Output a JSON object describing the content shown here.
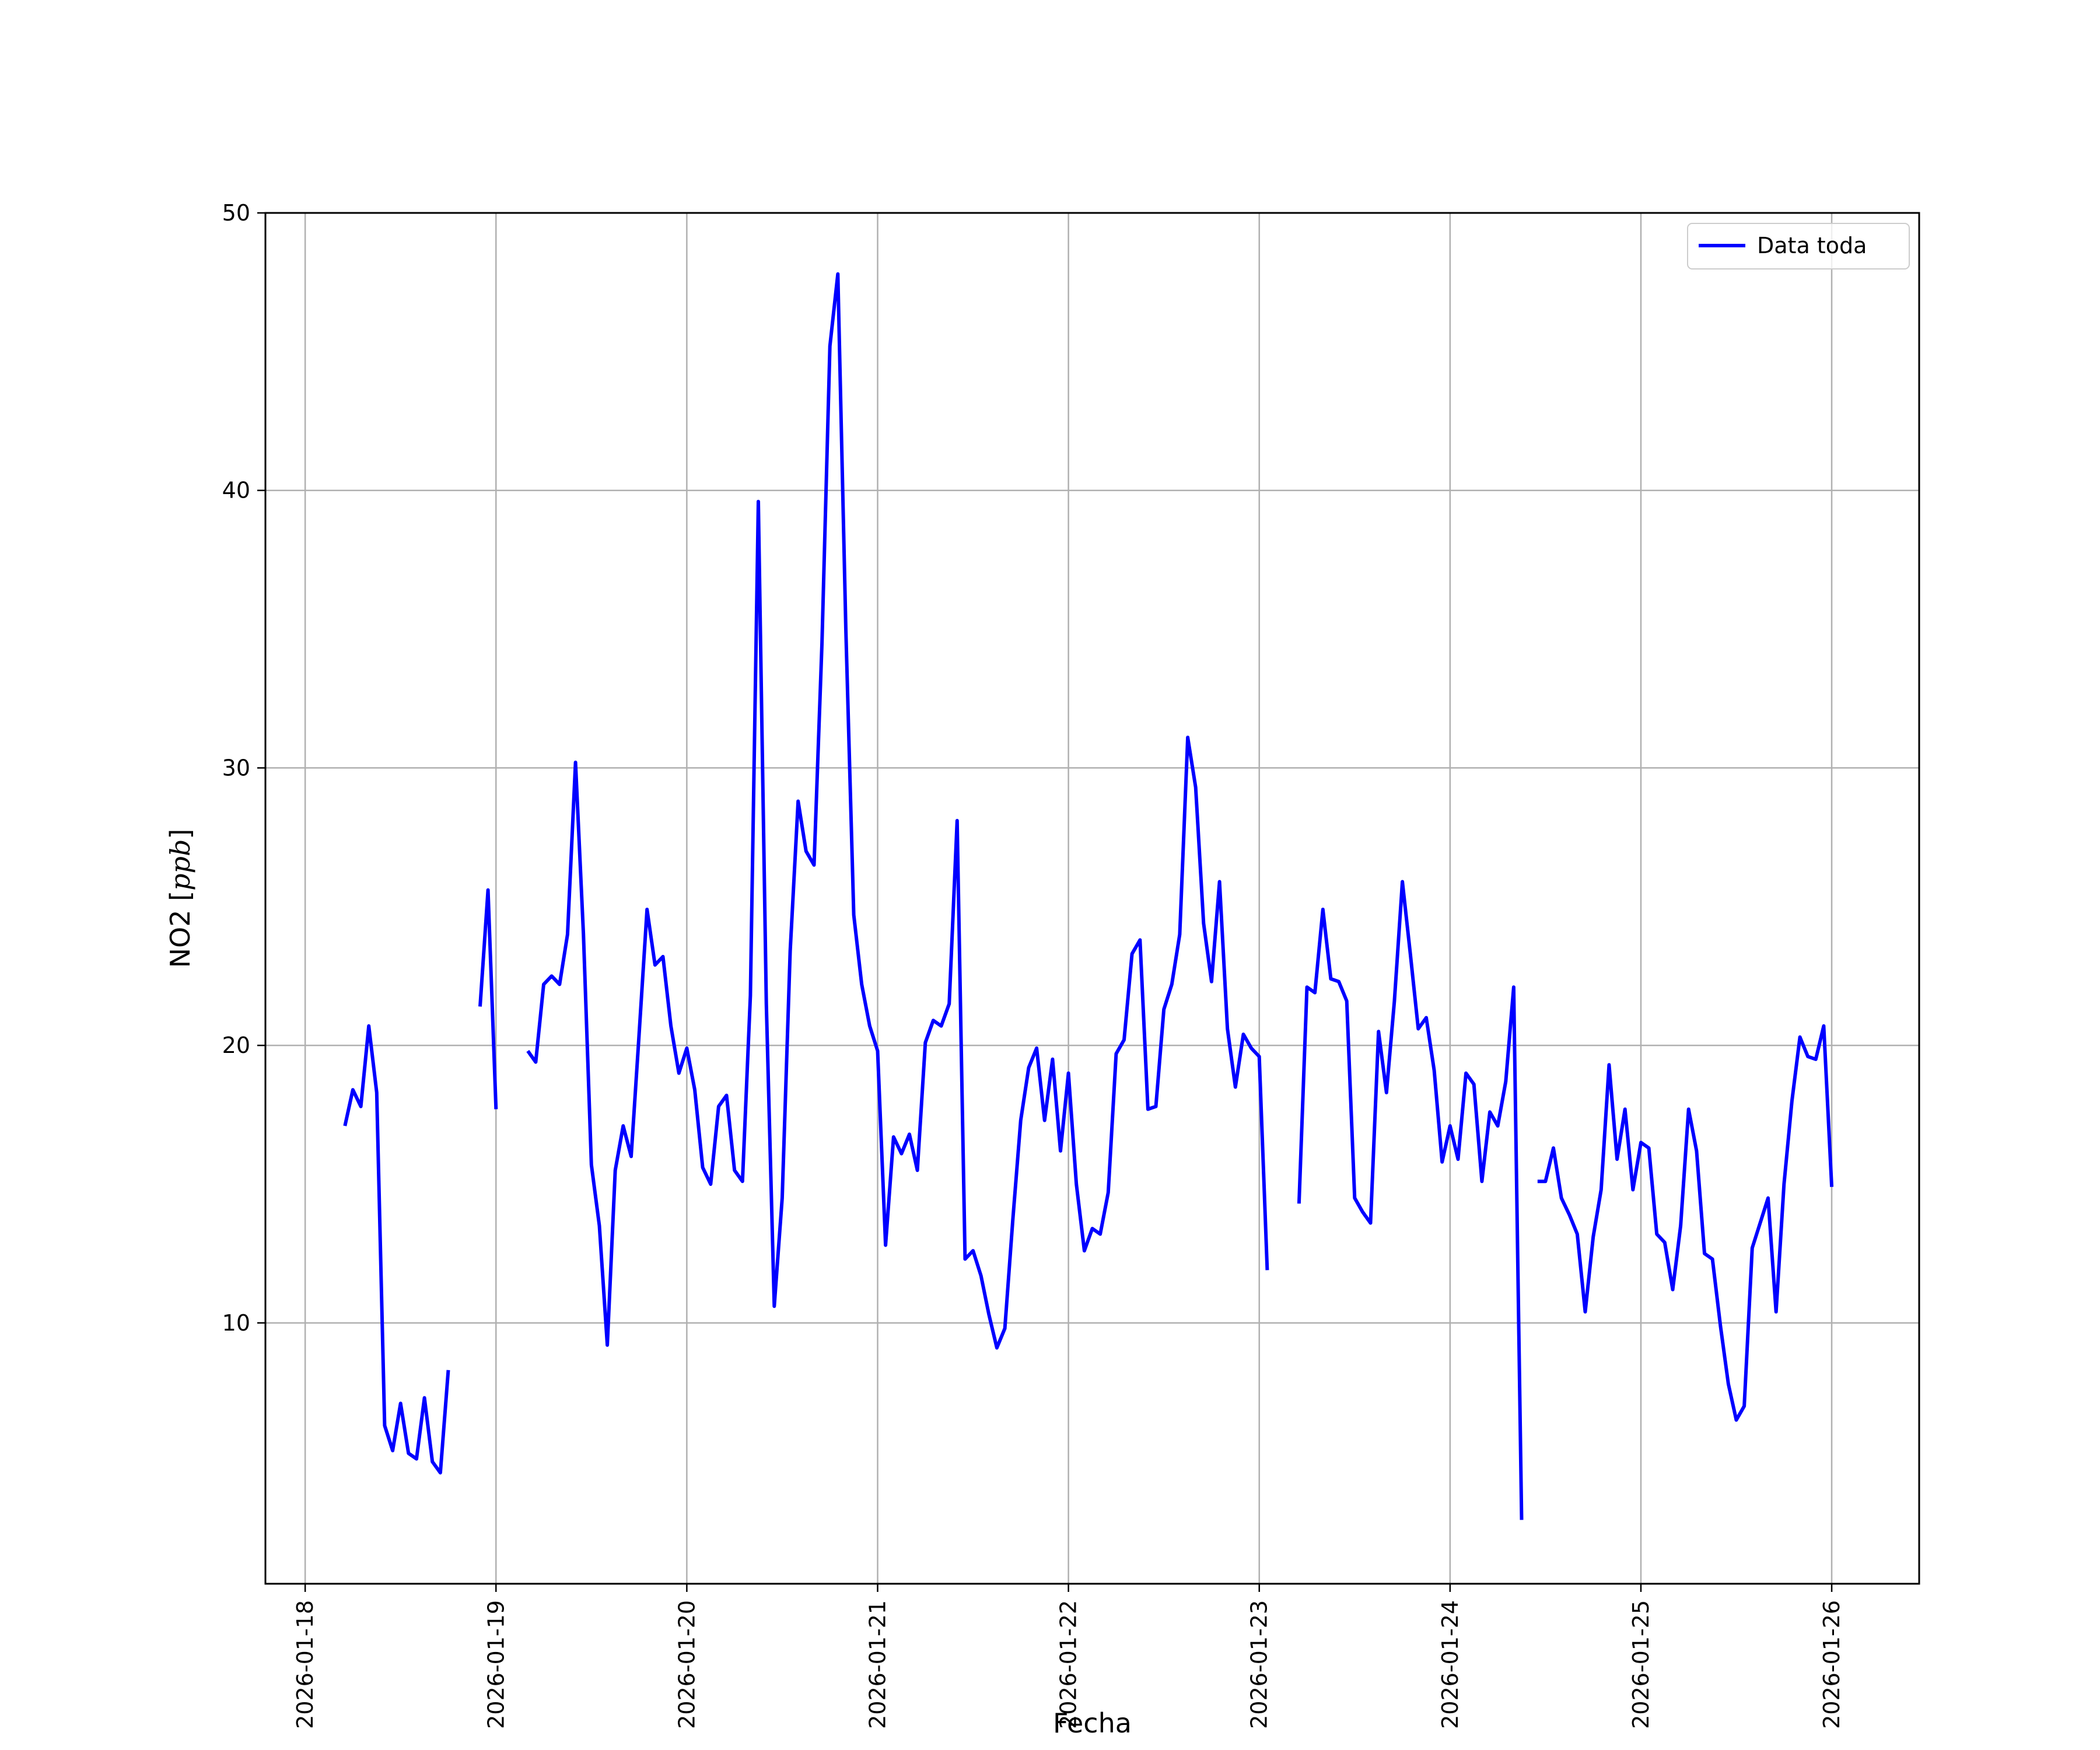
{
  "chart_data": {
    "type": "line",
    "xlabel": "Fecha",
    "ylabel": "NO2 [ppb]",
    "ylabel_parts": {
      "text": "NO2 [",
      "unit": "ppb",
      "close": "]"
    },
    "x_ticks": [
      "2026-01-18",
      "2026-01-19",
      "2026-01-20",
      "2026-01-21",
      "2026-01-22",
      "2026-01-23",
      "2026-01-24",
      "2026-01-25",
      "2026-01-26"
    ],
    "y_ticks": [
      10,
      20,
      30,
      40,
      50
    ],
    "xlim": [
      "2026-01-17 19:00",
      "2026-01-26 11:00"
    ],
    "ylim": [
      0.6,
      50
    ],
    "grid": true,
    "legend": {
      "position": "top-right",
      "entries": [
        "Data toda"
      ]
    },
    "series": [
      {
        "name": "Data toda",
        "color": "#0000ff",
        "points": [
          [
            "2026-01-18 05:00",
            17.1
          ],
          [
            "2026-01-18 06:00",
            18.4
          ],
          [
            "2026-01-18 07:00",
            17.8
          ],
          [
            "2026-01-18 08:00",
            20.7
          ],
          [
            "2026-01-18 09:00",
            18.3
          ],
          [
            "2026-01-18 10:00",
            6.3
          ],
          [
            "2026-01-18 11:00",
            5.4
          ],
          [
            "2026-01-18 12:00",
            7.1
          ],
          [
            "2026-01-18 13:00",
            5.3
          ],
          [
            "2026-01-18 14:00",
            5.1
          ],
          [
            "2026-01-18 15:00",
            7.3
          ],
          [
            "2026-01-18 16:00",
            5.0
          ],
          [
            "2026-01-18 17:00",
            4.6
          ],
          [
            "2026-01-18 18:00",
            8.3
          ],
          [
            "2026-01-18 22:00",
            null
          ],
          [
            "2026-01-18 22:00",
            21.4
          ],
          [
            "2026-01-18 23:00",
            25.6
          ],
          [
            "2026-01-19 00:00",
            17.7
          ],
          [
            "2026-01-19 04:00",
            null
          ],
          [
            "2026-01-19 04:00",
            19.8
          ],
          [
            "2026-01-19 05:00",
            19.4
          ],
          [
            "2026-01-19 06:00",
            22.2
          ],
          [
            "2026-01-19 07:00",
            22.5
          ],
          [
            "2026-01-19 08:00",
            22.2
          ],
          [
            "2026-01-19 09:00",
            24.0
          ],
          [
            "2026-01-19 10:00",
            30.2
          ],
          [
            "2026-01-19 11:00",
            24.0
          ],
          [
            "2026-01-19 12:00",
            15.7
          ],
          [
            "2026-01-19 13:00",
            13.5
          ],
          [
            "2026-01-19 14:00",
            9.2
          ],
          [
            "2026-01-19 15:00",
            15.5
          ],
          [
            "2026-01-19 16:00",
            17.1
          ],
          [
            "2026-01-19 17:00",
            16.0
          ],
          [
            "2026-01-19 18:00",
            20.4
          ],
          [
            "2026-01-19 19:00",
            24.9
          ],
          [
            "2026-01-19 20:00",
            22.9
          ],
          [
            "2026-01-19 21:00",
            23.2
          ],
          [
            "2026-01-19 22:00",
            20.7
          ],
          [
            "2026-01-19 23:00",
            19.0
          ],
          [
            "2026-01-20 00:00",
            19.9
          ],
          [
            "2026-01-20 01:00",
            18.4
          ],
          [
            "2026-01-20 02:00",
            15.6
          ],
          [
            "2026-01-20 03:00",
            15.0
          ],
          [
            "2026-01-20 04:00",
            17.8
          ],
          [
            "2026-01-20 05:00",
            18.2
          ],
          [
            "2026-01-20 06:00",
            15.5
          ],
          [
            "2026-01-20 07:00",
            15.1
          ],
          [
            "2026-01-20 08:00",
            21.8
          ],
          [
            "2026-01-20 09:00",
            39.6
          ],
          [
            "2026-01-20 10:00",
            21.5
          ],
          [
            "2026-01-20 11:00",
            10.6
          ],
          [
            "2026-01-20 12:00",
            14.5
          ],
          [
            "2026-01-20 13:00",
            23.4
          ],
          [
            "2026-01-20 14:00",
            28.8
          ],
          [
            "2026-01-20 15:00",
            27.0
          ],
          [
            "2026-01-20 16:00",
            26.5
          ],
          [
            "2026-01-20 17:00",
            34.5
          ],
          [
            "2026-01-20 18:00",
            45.2
          ],
          [
            "2026-01-20 19:00",
            47.8
          ],
          [
            "2026-01-20 20:00",
            35.0
          ],
          [
            "2026-01-20 21:00",
            24.7
          ],
          [
            "2026-01-20 22:00",
            22.2
          ],
          [
            "2026-01-20 23:00",
            20.7
          ],
          [
            "2026-01-21 00:00",
            19.8
          ],
          [
            "2026-01-21 01:00",
            12.8
          ],
          [
            "2026-01-21 02:00",
            16.7
          ],
          [
            "2026-01-21 03:00",
            16.1
          ],
          [
            "2026-01-21 04:00",
            16.8
          ],
          [
            "2026-01-21 05:00",
            15.5
          ],
          [
            "2026-01-21 06:00",
            20.1
          ],
          [
            "2026-01-21 07:00",
            20.9
          ],
          [
            "2026-01-21 08:00",
            20.7
          ],
          [
            "2026-01-21 09:00",
            21.5
          ],
          [
            "2026-01-21 10:00",
            28.1
          ],
          [
            "2026-01-21 11:00",
            12.3
          ],
          [
            "2026-01-21 12:00",
            12.6
          ],
          [
            "2026-01-21 13:00",
            11.7
          ],
          [
            "2026-01-21 14:00",
            10.3
          ],
          [
            "2026-01-21 15:00",
            9.1
          ],
          [
            "2026-01-21 16:00",
            9.8
          ],
          [
            "2026-01-21 17:00",
            13.7
          ],
          [
            "2026-01-21 18:00",
            17.3
          ],
          [
            "2026-01-21 19:00",
            19.2
          ],
          [
            "2026-01-21 20:00",
            19.9
          ],
          [
            "2026-01-21 21:00",
            17.3
          ],
          [
            "2026-01-21 22:00",
            19.5
          ],
          [
            "2026-01-21 23:00",
            16.2
          ],
          [
            "2026-01-22 00:00",
            19.0
          ],
          [
            "2026-01-22 01:00",
            15.0
          ],
          [
            "2026-01-22 02:00",
            12.6
          ],
          [
            "2026-01-22 03:00",
            13.4
          ],
          [
            "2026-01-22 04:00",
            13.2
          ],
          [
            "2026-01-22 05:00",
            14.7
          ],
          [
            "2026-01-22 06:00",
            19.7
          ],
          [
            "2026-01-22 07:00",
            20.2
          ],
          [
            "2026-01-22 08:00",
            23.3
          ],
          [
            "2026-01-22 09:00",
            23.8
          ],
          [
            "2026-01-22 10:00",
            17.7
          ],
          [
            "2026-01-22 11:00",
            17.8
          ],
          [
            "2026-01-22 12:00",
            21.3
          ],
          [
            "2026-01-22 13:00",
            22.2
          ],
          [
            "2026-01-22 14:00",
            24.0
          ],
          [
            "2026-01-22 15:00",
            31.1
          ],
          [
            "2026-01-22 16:00",
            29.3
          ],
          [
            "2026-01-22 17:00",
            24.4
          ],
          [
            "2026-01-22 18:00",
            22.3
          ],
          [
            "2026-01-22 19:00",
            25.9
          ],
          [
            "2026-01-22 20:00",
            20.6
          ],
          [
            "2026-01-22 21:00",
            18.5
          ],
          [
            "2026-01-22 22:00",
            20.4
          ],
          [
            "2026-01-22 23:00",
            19.9
          ],
          [
            "2026-01-23 00:00",
            19.6
          ],
          [
            "2026-01-23 01:00",
            11.9
          ],
          [
            "2026-01-23 05:00",
            null
          ],
          [
            "2026-01-23 05:00",
            14.3
          ],
          [
            "2026-01-23 06:00",
            22.1
          ],
          [
            "2026-01-23 07:00",
            21.9
          ],
          [
            "2026-01-23 08:00",
            24.9
          ],
          [
            "2026-01-23 09:00",
            22.4
          ],
          [
            "2026-01-23 10:00",
            22.3
          ],
          [
            "2026-01-23 11:00",
            21.6
          ],
          [
            "2026-01-23 12:00",
            14.5
          ],
          [
            "2026-01-23 13:00",
            14.0
          ],
          [
            "2026-01-23 14:00",
            13.6
          ],
          [
            "2026-01-23 15:00",
            20.5
          ],
          [
            "2026-01-23 16:00",
            18.3
          ],
          [
            "2026-01-23 17:00",
            21.6
          ],
          [
            "2026-01-23 18:00",
            25.9
          ],
          [
            "2026-01-23 19:00",
            23.3
          ],
          [
            "2026-01-23 20:00",
            20.6
          ],
          [
            "2026-01-23 21:00",
            21.0
          ],
          [
            "2026-01-23 22:00",
            19.1
          ],
          [
            "2026-01-23 23:00",
            15.8
          ],
          [
            "2026-01-24 00:00",
            17.1
          ],
          [
            "2026-01-24 01:00",
            15.9
          ],
          [
            "2026-01-24 02:00",
            19.0
          ],
          [
            "2026-01-24 03:00",
            18.6
          ],
          [
            "2026-01-24 04:00",
            15.1
          ],
          [
            "2026-01-24 05:00",
            17.6
          ],
          [
            "2026-01-24 06:00",
            17.1
          ],
          [
            "2026-01-24 07:00",
            18.7
          ],
          [
            "2026-01-24 08:00",
            22.1
          ],
          [
            "2026-01-24 09:00",
            2.9
          ],
          [
            "2026-01-24 11:00",
            null
          ],
          [
            "2026-01-24 11:00",
            15.1
          ],
          [
            "2026-01-24 12:00",
            15.1
          ],
          [
            "2026-01-24 13:00",
            16.3
          ],
          [
            "2026-01-24 14:00",
            14.5
          ],
          [
            "2026-01-24 15:00",
            13.9
          ],
          [
            "2026-01-24 16:00",
            13.2
          ],
          [
            "2026-01-24 17:00",
            10.4
          ],
          [
            "2026-01-24 18:00",
            13.1
          ],
          [
            "2026-01-24 19:00",
            14.8
          ],
          [
            "2026-01-24 20:00",
            19.3
          ],
          [
            "2026-01-24 21:00",
            15.9
          ],
          [
            "2026-01-24 22:00",
            17.7
          ],
          [
            "2026-01-24 23:00",
            14.8
          ],
          [
            "2026-01-25 00:00",
            16.5
          ],
          [
            "2026-01-25 01:00",
            16.3
          ],
          [
            "2026-01-25 02:00",
            13.2
          ],
          [
            "2026-01-25 03:00",
            12.9
          ],
          [
            "2026-01-25 04:00",
            11.2
          ],
          [
            "2026-01-25 05:00",
            13.5
          ],
          [
            "2026-01-25 06:00",
            17.7
          ],
          [
            "2026-01-25 07:00",
            16.2
          ],
          [
            "2026-01-25 08:00",
            12.5
          ],
          [
            "2026-01-25 09:00",
            12.3
          ],
          [
            "2026-01-25 10:00",
            9.9
          ],
          [
            "2026-01-25 11:00",
            7.8
          ],
          [
            "2026-01-25 12:00",
            6.5
          ],
          [
            "2026-01-25 13:00",
            7.0
          ],
          [
            "2026-01-25 14:00",
            12.7
          ],
          [
            "2026-01-25 15:00",
            13.6
          ],
          [
            "2026-01-25 16:00",
            14.5
          ],
          [
            "2026-01-25 17:00",
            10.4
          ],
          [
            "2026-01-25 18:00",
            15.0
          ],
          [
            "2026-01-25 19:00",
            18.0
          ],
          [
            "2026-01-25 20:00",
            20.3
          ],
          [
            "2026-01-25 21:00",
            19.6
          ],
          [
            "2026-01-25 22:00",
            19.5
          ],
          [
            "2026-01-25 23:00",
            20.7
          ],
          [
            "2026-01-26 00:00",
            14.9
          ]
        ]
      }
    ]
  }
}
